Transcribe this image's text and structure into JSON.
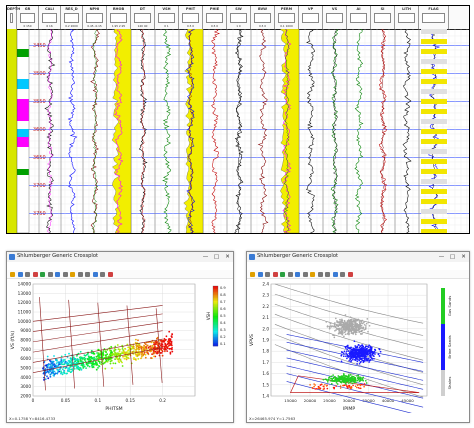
{
  "log_panel": {
    "title_tab": "Well A",
    "header_tracks": [
      {
        "name": "DEPTH",
        "range": ""
      },
      {
        "name": "GR",
        "range": "0 150"
      },
      {
        "name": "CALI",
        "range": "6 16"
      },
      {
        "name": "RES_D",
        "range": "0.2 2000"
      },
      {
        "name": "NPHI",
        "range": "0.45 -0.15"
      },
      {
        "name": "RHOB",
        "range": "1.95 2.95"
      },
      {
        "name": "DT",
        "range": "140 40"
      },
      {
        "name": "VSH",
        "range": "0 1"
      },
      {
        "name": "PHIT",
        "range": "0.5 0"
      },
      {
        "name": "PHIE",
        "range": "0.5 0"
      },
      {
        "name": "SW",
        "range": "1 0"
      },
      {
        "name": "BVW",
        "range": "0.5 0"
      },
      {
        "name": "PERM",
        "range": "0.1 1000"
      },
      {
        "name": "VP",
        "range": ""
      },
      {
        "name": "VS",
        "range": ""
      },
      {
        "name": "AI",
        "range": ""
      },
      {
        "name": "SI",
        "range": ""
      },
      {
        "name": "LITH",
        "range": ""
      },
      {
        "name": "FLAG",
        "range": ""
      }
    ],
    "depths": [
      "3450",
      "3500",
      "3550",
      "3600",
      "3650",
      "3700",
      "3750"
    ]
  },
  "window_left": {
    "title": "Shlumberger Generic Crossplot",
    "menus": [
      "File",
      "Tools",
      "View",
      "Overlay",
      "Help"
    ],
    "status": "X=0.1758  Y=8416.4733",
    "colorbar_label": "VSH",
    "colorbar_ticks": [
      "0.9",
      "0.8",
      "0.7",
      "0.6",
      "0.5",
      "0.4",
      "0.3",
      "0.2",
      "0.1"
    ]
  },
  "window_right": {
    "title": "Shlumberger Generic Crossplot",
    "menus": [
      "File",
      "Tools",
      "View",
      "Overlay",
      "Help"
    ],
    "status": "X=26465.974  Y=1.7563",
    "zone_labels": [
      "Gas Sands",
      "Brine Sands",
      "Shales"
    ],
    "zone_colors": [
      "#22cc22",
      "#1a1aff",
      "#cfcfcf"
    ]
  },
  "chart_data": [
    {
      "type": "scatter",
      "title": "",
      "xlabel": "PHITSM",
      "ylabel": "VS (ft/s)",
      "xlim": [
        0,
        0.25
      ],
      "ylim": [
        2000,
        14000
      ],
      "xticks": [
        "0",
        "0.05",
        "0.1",
        "0.15",
        "0.2"
      ],
      "yticks": [
        "2000",
        "3000",
        "4000",
        "5000",
        "6000",
        "7000",
        "8000",
        "9000",
        "10000",
        "11000",
        "12000",
        "13000",
        "14000"
      ],
      "color_by": "VSH",
      "clusters": [
        {
          "x_center": 0.05,
          "y_center": 5400,
          "color": "#1aa3a3"
        },
        {
          "x_center": 0.1,
          "y_center": 6800,
          "color": "#e0c000"
        },
        {
          "x_center": 0.16,
          "y_center": 7400,
          "color": "#e05000"
        }
      ]
    },
    {
      "type": "scatter",
      "title": "",
      "xlabel": "IPIMP",
      "ylabel": "VPVS",
      "xlim": [
        10000,
        50000
      ],
      "ylim": [
        1.4,
        2.4
      ],
      "xticks": [
        "15000",
        "20000",
        "25000",
        "30000",
        "35000",
        "40000",
        "45000"
      ],
      "yticks": [
        "1.4",
        "1.5",
        "1.6",
        "1.7",
        "1.8",
        "1.9",
        "2.0",
        "2.1",
        "2.2",
        "2.3",
        "2.4"
      ],
      "clusters": [
        {
          "x_center": 33000,
          "y_center": 1.78,
          "color": "#1a1aff"
        },
        {
          "x_center": 30000,
          "y_center": 2.02,
          "color": "#aaaaaa"
        },
        {
          "x_center": 29000,
          "y_center": 1.55,
          "color": "#22cc22"
        }
      ]
    }
  ]
}
